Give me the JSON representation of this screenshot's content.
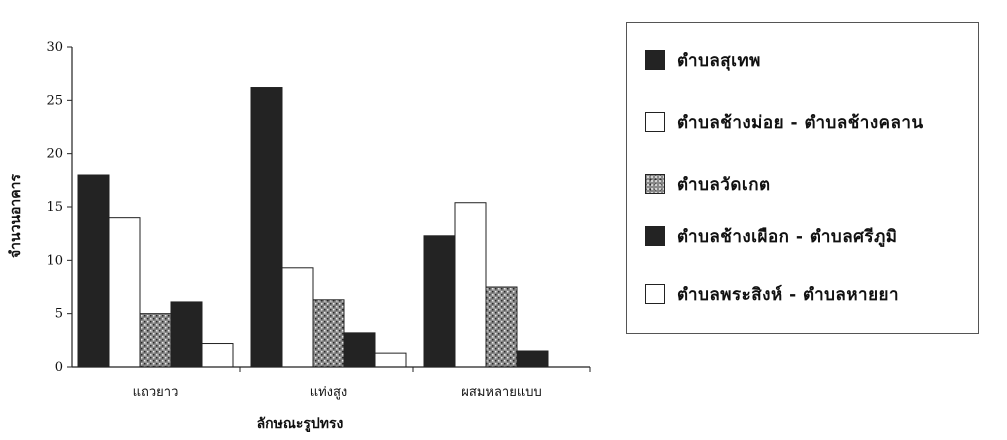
{
  "colors": {
    "dark": "#232323",
    "white": "#ffffff",
    "pattern_fg": "#2a2a2a",
    "pattern_bg": "#8a8a8a",
    "axis": "#222222"
  },
  "chart_data": {
    "type": "bar",
    "categories": [
      "แถวยาว",
      "แท่งสูง",
      "ผสมหลายแบบ"
    ],
    "xlabel": "ลักษณะรูปทรง",
    "ylabel": "จำนวนอาคาร",
    "ylim": [
      0,
      30
    ],
    "yticks": [
      0,
      5,
      10,
      15,
      20,
      25,
      30
    ],
    "grid": false,
    "legend_position": "right",
    "series": [
      {
        "name": "ตำบลสุเทพ",
        "fill": "dark",
        "values": [
          18,
          26.2,
          12.3
        ]
      },
      {
        "name": "ตำบลช้างม่อย - ตำบลช้างคลาน",
        "fill": "white",
        "values": [
          14,
          9.3,
          15.4
        ]
      },
      {
        "name": "ตำบลวัดเกต",
        "fill": "pattern",
        "values": [
          5,
          6.3,
          7.5
        ]
      },
      {
        "name": "ตำบลช้างเผือก - ตำบลศรีภูมิ",
        "fill": "dark",
        "values": [
          6.1,
          3.2,
          1.5
        ]
      },
      {
        "name": "ตำบลพระสิงห์ - ตำบลหายยา",
        "fill": "white",
        "values": [
          2.2,
          1.3,
          0
        ]
      }
    ]
  }
}
